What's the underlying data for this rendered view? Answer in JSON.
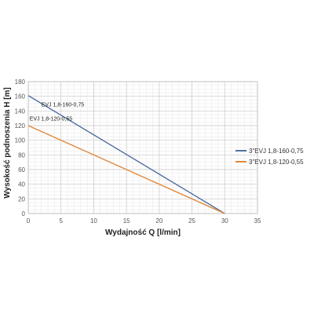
{
  "chart_data": {
    "type": "line",
    "title": "",
    "xlabel": "Wydajność Q [l/min]",
    "ylabel": "Wysokość podnoszenia H [m]",
    "xlim": [
      0,
      35
    ],
    "ylim": [
      0,
      180
    ],
    "x_ticks": [
      0,
      5,
      10,
      15,
      20,
      25,
      30,
      35
    ],
    "y_ticks": [
      0,
      20,
      40,
      60,
      80,
      100,
      120,
      140,
      160,
      180
    ],
    "grid": true,
    "legend_position": "right",
    "series": [
      {
        "name": "3\"EVJ 1,8-160-0,75",
        "color": "#4f6f9f",
        "x": [
          0,
          30
        ],
        "y": [
          161,
          0
        ]
      },
      {
        "name": "3\"EVJ 1,8-120-0,55",
        "color": "#e0873a",
        "x": [
          0,
          30
        ],
        "y": [
          120,
          0
        ]
      }
    ],
    "annotations": [
      {
        "text": "EVJ 1,8-160-0,75",
        "x": 2,
        "y": 146
      },
      {
        "text": "EVJ 1,8-120-0,55",
        "x": 0.2,
        "y": 127
      }
    ]
  }
}
